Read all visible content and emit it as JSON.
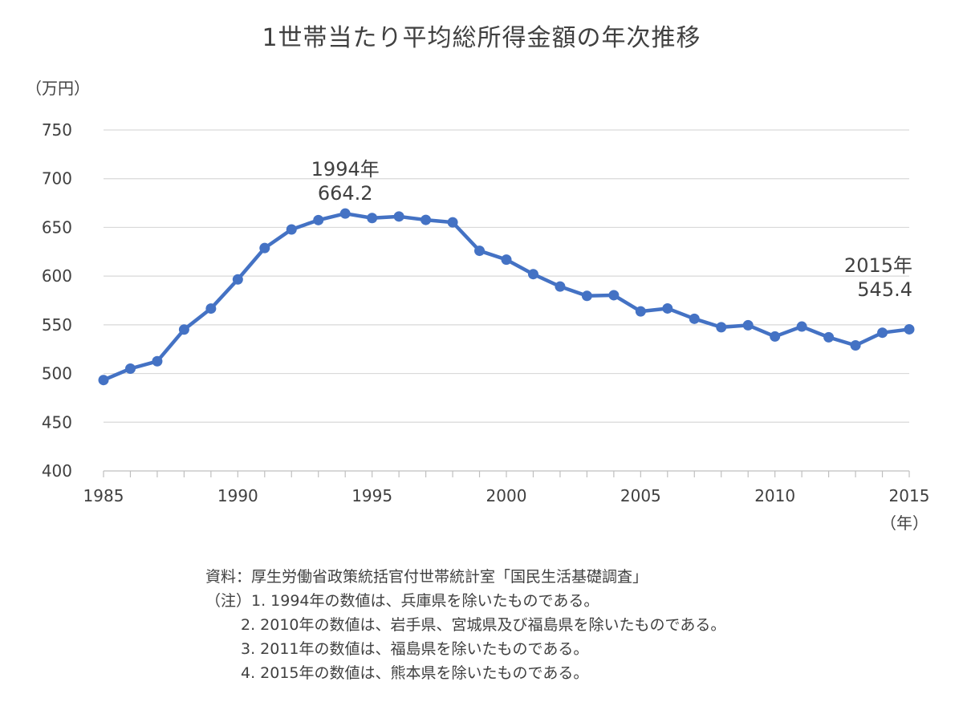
{
  "title": "1世帯当たり平均総所得金額の年次推移",
  "chart_data": {
    "type": "line",
    "title": "1世帯当たり平均総所得金額の年次推移",
    "ylabel": "（万円）",
    "xlabel": "（年）",
    "ylim": [
      400,
      750
    ],
    "yticks": [
      400,
      450,
      500,
      550,
      600,
      650,
      700,
      750
    ],
    "xticks": [
      1985,
      1990,
      1995,
      2000,
      2005,
      2010,
      2015
    ],
    "grid": true,
    "line_color": "#4472c4",
    "x": [
      1985,
      1986,
      1987,
      1988,
      1989,
      1990,
      1991,
      1992,
      1993,
      1994,
      1995,
      1996,
      1997,
      1998,
      1999,
      2000,
      2001,
      2002,
      2003,
      2004,
      2005,
      2006,
      2007,
      2008,
      2009,
      2010,
      2011,
      2012,
      2013,
      2014,
      2015
    ],
    "values": [
      493.3,
      505.0,
      512.6,
      545.1,
      566.7,
      596.6,
      628.8,
      647.9,
      657.5,
      664.2,
      659.6,
      661.2,
      657.7,
      655.2,
      626.0,
      616.9,
      602.0,
      589.3,
      579.7,
      580.4,
      563.8,
      566.8,
      556.2,
      547.5,
      549.6,
      538.0,
      548.2,
      537.2,
      528.9,
      541.9,
      545.4
    ],
    "annotations": [
      {
        "year_label": "1994年",
        "value_label": "664.2",
        "x": 1994
      },
      {
        "year_label": "2015年",
        "value_label": "545.4",
        "x": 2015
      }
    ]
  },
  "notes": {
    "source": "資料：厚生労働省政策統括官付世帯統計室「国民生活基礎調査」",
    "note1": "（注）1. 1994年の数値は、兵庫県を除いたものである。",
    "note2": "2. 2010年の数値は、岩手県、宮城県及び福島県を除いたものである。",
    "note3": "3. 2011年の数値は、福島県を除いたものである。",
    "note4": "4. 2015年の数値は、熊本県を除いたものである。"
  }
}
